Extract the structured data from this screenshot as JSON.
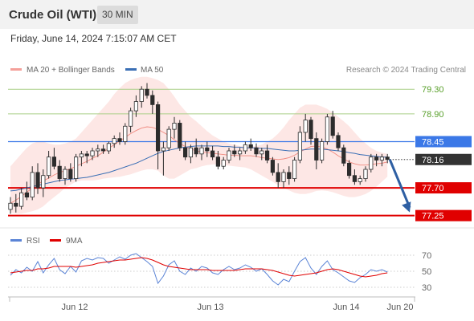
{
  "header": {
    "title": "Crude Oil (WTI)",
    "timeframe": "30 MIN"
  },
  "datetime": "Friday, June 14, 2024 7:15:07 AM CET",
  "copyright": "Research © 2024 Trading Central",
  "chart_data": {
    "type": "candlestick",
    "instrument": "Crude Oil (WTI)",
    "interval": "30 MIN",
    "legend": {
      "position": "top-left",
      "items": [
        {
          "name": "MA 20 + Bollinger Bands",
          "color": "#f4a09a"
        },
        {
          "name": "MA 50",
          "color": "#3a6fb5"
        }
      ]
    },
    "ylim": [
      77.05,
      79.55
    ],
    "price_ticks": [
      79.3,
      78.9,
      78.45,
      78.16,
      77.7,
      77.25
    ],
    "levels": [
      {
        "value": 79.3,
        "label": "79.30",
        "kind": "resistance-2",
        "color": "#a9cf87",
        "label_color": "#5aa02c"
      },
      {
        "value": 78.9,
        "label": "78.90",
        "kind": "resistance-1",
        "color": "#a9cf87",
        "label_color": "#5aa02c"
      },
      {
        "value": 78.45,
        "label": "78.45",
        "kind": "pivot",
        "color": "#3b78e7",
        "label_bg": "#3b78e7"
      },
      {
        "value": 78.16,
        "label": "78.16",
        "kind": "last-price",
        "color": "#333333",
        "label_bg": "#333333"
      },
      {
        "value": 77.7,
        "label": "77.70",
        "kind": "support-1",
        "color": "#e00000",
        "label_bg": "#e00000"
      },
      {
        "value": 77.25,
        "label": "77.25",
        "kind": "support-2",
        "color": "#e00000",
        "label_bg": "#e00000"
      }
    ],
    "x_labels": [
      "Jun 12",
      "Jun 13",
      "Jun 14",
      "Jun 20"
    ],
    "forecast": {
      "from": 78.16,
      "to": 77.25,
      "direction": "down",
      "color": "#2e5fa3"
    },
    "candles": [
      [
        77.35,
        77.55,
        77.28,
        77.45
      ],
      [
        77.45,
        77.6,
        77.3,
        77.4
      ],
      [
        77.4,
        77.7,
        77.35,
        77.62
      ],
      [
        77.62,
        77.8,
        77.5,
        77.55
      ],
      [
        77.55,
        78.05,
        77.5,
        77.95
      ],
      [
        77.95,
        78.1,
        77.6,
        77.7
      ],
      [
        77.7,
        78.0,
        77.55,
        77.9
      ],
      [
        77.9,
        78.3,
        77.85,
        78.2
      ],
      [
        78.2,
        78.35,
        78.0,
        78.05
      ],
      [
        78.05,
        78.15,
        77.8,
        77.85
      ],
      [
        77.85,
        78.05,
        77.75,
        78.0
      ],
      [
        78.0,
        78.1,
        77.8,
        77.85
      ],
      [
        77.85,
        78.25,
        77.8,
        78.2
      ],
      [
        78.2,
        78.3,
        78.05,
        78.25
      ],
      [
        78.25,
        78.3,
        78.1,
        78.22
      ],
      [
        78.22,
        78.35,
        78.15,
        78.3
      ],
      [
        78.3,
        78.4,
        78.2,
        78.33
      ],
      [
        78.33,
        78.4,
        78.25,
        78.3
      ],
      [
        78.3,
        78.45,
        78.25,
        78.42
      ],
      [
        78.42,
        78.55,
        78.35,
        78.5
      ],
      [
        78.5,
        78.6,
        78.4,
        78.45
      ],
      [
        78.45,
        78.75,
        78.4,
        78.7
      ],
      [
        78.7,
        79.0,
        78.6,
        78.95
      ],
      [
        78.95,
        79.2,
        78.85,
        79.1
      ],
      [
        79.1,
        79.35,
        79.0,
        79.3
      ],
      [
        79.3,
        79.4,
        79.15,
        79.2
      ],
      [
        79.2,
        79.28,
        78.9,
        79.05
      ],
      [
        79.05,
        79.1,
        78.0,
        78.3
      ],
      [
        78.3,
        78.45,
        77.9,
        78.35
      ],
      [
        78.35,
        78.7,
        78.3,
        78.65
      ],
      [
        78.65,
        78.85,
        78.5,
        78.75
      ],
      [
        78.75,
        78.8,
        78.3,
        78.35
      ],
      [
        78.35,
        78.45,
        78.15,
        78.2
      ],
      [
        78.2,
        78.4,
        78.1,
        78.35
      ],
      [
        78.35,
        78.5,
        78.2,
        78.25
      ],
      [
        78.25,
        78.4,
        78.15,
        78.35
      ],
      [
        78.35,
        78.45,
        78.2,
        78.3
      ],
      [
        78.3,
        78.38,
        78.15,
        78.2
      ],
      [
        78.2,
        78.3,
        78.0,
        78.05
      ],
      [
        78.05,
        78.2,
        78.0,
        78.15
      ],
      [
        78.15,
        78.35,
        78.1,
        78.3
      ],
      [
        78.3,
        78.4,
        78.2,
        78.25
      ],
      [
        78.25,
        78.35,
        78.15,
        78.3
      ],
      [
        78.3,
        78.45,
        78.25,
        78.4
      ],
      [
        78.4,
        78.5,
        78.3,
        78.35
      ],
      [
        78.35,
        78.42,
        78.2,
        78.25
      ],
      [
        78.25,
        78.35,
        78.15,
        78.3
      ],
      [
        78.3,
        78.4,
        78.1,
        78.15
      ],
      [
        78.15,
        78.2,
        77.9,
        77.95
      ],
      [
        77.95,
        78.1,
        77.7,
        77.8
      ],
      [
        77.8,
        78.0,
        77.7,
        77.95
      ],
      [
        77.95,
        78.05,
        77.75,
        77.85
      ],
      [
        77.85,
        78.2,
        77.8,
        78.15
      ],
      [
        78.15,
        78.7,
        78.1,
        78.6
      ],
      [
        78.6,
        78.9,
        78.45,
        78.8
      ],
      [
        78.8,
        78.85,
        78.4,
        78.5
      ],
      [
        78.5,
        78.6,
        78.0,
        78.15
      ],
      [
        78.15,
        78.5,
        78.1,
        78.45
      ],
      [
        78.45,
        78.9,
        78.4,
        78.85
      ],
      [
        78.85,
        78.95,
        78.5,
        78.55
      ],
      [
        78.55,
        78.6,
        78.3,
        78.35
      ],
      [
        78.35,
        78.4,
        78.05,
        78.1
      ],
      [
        78.1,
        78.15,
        77.85,
        77.9
      ],
      [
        77.9,
        78.0,
        77.75,
        77.8
      ],
      [
        77.8,
        77.9,
        77.75,
        77.85
      ],
      [
        77.85,
        78.05,
        77.8,
        78.0
      ],
      [
        78.0,
        78.25,
        77.95,
        78.2
      ],
      [
        78.2,
        78.25,
        78.05,
        78.15
      ],
      [
        78.15,
        78.25,
        78.05,
        78.2
      ],
      [
        78.2,
        78.25,
        78.1,
        78.16
      ]
    ],
    "bb_mid": [
      77.45,
      77.5,
      77.56,
      77.63,
      77.7,
      77.76,
      77.81,
      77.86,
      77.91,
      77.95,
      77.98,
      78.01,
      78.05,
      78.09,
      78.13,
      78.18,
      78.22,
      78.28,
      78.34,
      78.4,
      78.46,
      78.52,
      78.58,
      78.63,
      78.67,
      78.69,
      78.68,
      78.65,
      78.6,
      78.55,
      78.48,
      78.42,
      78.37,
      78.33,
      78.3,
      78.28,
      78.27,
      78.26,
      78.25,
      78.24,
      78.23,
      78.23,
      78.22,
      78.22,
      78.22,
      78.21,
      78.19,
      78.18,
      78.17,
      78.16,
      78.17,
      78.19,
      78.23,
      78.28,
      78.33,
      78.37,
      78.38,
      78.36,
      78.33,
      78.28,
      78.22,
      78.17,
      78.12,
      78.09,
      78.07,
      78.07,
      78.08,
      78.09,
      78.1,
      78.12
    ],
    "bb_upper": [
      78.05,
      78.15,
      78.25,
      78.35,
      78.42,
      78.45,
      78.45,
      78.42,
      78.4,
      78.4,
      78.42,
      78.45,
      78.5,
      78.6,
      78.7,
      78.8,
      78.9,
      79.0,
      79.1,
      79.22,
      79.32,
      79.4,
      79.45,
      79.48,
      79.5,
      79.5,
      79.48,
      79.45,
      79.4,
      79.3,
      79.18,
      79.05,
      78.95,
      78.85,
      78.78,
      78.7,
      78.62,
      78.55,
      78.5,
      78.45,
      78.42,
      78.4,
      78.38,
      78.37,
      78.37,
      78.38,
      78.4,
      78.45,
      78.5,
      78.58,
      78.68,
      78.8,
      78.9,
      79.0,
      79.05,
      79.05,
      79.05,
      79.02,
      78.98,
      78.92,
      78.85,
      78.78,
      78.7,
      78.6,
      78.5,
      78.42,
      78.35,
      78.3,
      78.27,
      78.25
    ],
    "bb_lower": [
      77.3,
      77.28,
      77.28,
      77.3,
      77.32,
      77.35,
      77.4,
      77.48,
      77.55,
      77.62,
      77.7,
      77.75,
      77.8,
      77.82,
      77.82,
      77.82,
      77.83,
      77.85,
      77.86,
      77.87,
      77.88,
      77.9,
      77.92,
      77.95,
      77.98,
      78.0,
      78.0,
      77.98,
      77.9,
      77.85,
      77.85,
      77.9,
      77.95,
      78.0,
      78.02,
      78.05,
      78.07,
      78.08,
      78.08,
      78.07,
      78.06,
      78.05,
      78.04,
      78.03,
      78.0,
      77.95,
      77.9,
      77.85,
      77.8,
      77.74,
      77.7,
      77.66,
      77.62,
      77.6,
      77.6,
      77.62,
      77.65,
      77.66,
      77.65,
      77.63,
      77.6,
      77.57,
      77.55,
      77.55,
      77.57,
      77.6,
      77.65,
      77.72,
      77.8,
      77.88
    ],
    "ma50": [
      77.65,
      77.66,
      77.68,
      77.7,
      77.72,
      77.74,
      77.76,
      77.78,
      77.8,
      77.82,
      77.83,
      77.84,
      77.85,
      77.86,
      77.87,
      77.89,
      77.91,
      77.93,
      77.95,
      77.98,
      78.01,
      78.04,
      78.07,
      78.1,
      78.14,
      78.18,
      78.22,
      78.26,
      78.29,
      78.31,
      78.33,
      78.35,
      78.36,
      78.37,
      78.38,
      78.38,
      78.38,
      78.38,
      78.38,
      78.37,
      78.37,
      78.36,
      78.36,
      78.35,
      78.35,
      78.35,
      78.34,
      78.34,
      78.33,
      78.32,
      78.31,
      78.3,
      78.3,
      78.31,
      78.32,
      78.33,
      78.33,
      78.33,
      78.32,
      78.31,
      78.3,
      78.29,
      78.27,
      78.26,
      78.24,
      78.23,
      78.22,
      78.21,
      78.2,
      78.2
    ],
    "rsi": {
      "title": "RSI",
      "signal_title": "9MA",
      "ylim": [
        20,
        80
      ],
      "ticks": [
        70,
        50,
        30
      ],
      "rsi": [
        45,
        52,
        48,
        55,
        50,
        62,
        48,
        58,
        66,
        52,
        47,
        56,
        49,
        63,
        66,
        64,
        67,
        66,
        60,
        64,
        68,
        65,
        70,
        72,
        67,
        62,
        56,
        35,
        44,
        58,
        63,
        50,
        46,
        54,
        50,
        56,
        54,
        48,
        46,
        52,
        56,
        52,
        54,
        58,
        55,
        50,
        53,
        46,
        38,
        33,
        40,
        37,
        50,
        62,
        67,
        54,
        46,
        56,
        63,
        52,
        48,
        43,
        38,
        36,
        42,
        46,
        52,
        50,
        52,
        49
      ],
      "ma9": [
        48,
        49,
        50,
        51,
        51,
        53,
        53,
        54,
        56,
        56,
        56,
        56,
        55,
        56,
        57,
        58,
        60,
        61,
        62,
        63,
        64,
        64,
        65,
        66,
        67,
        66,
        64,
        61,
        58,
        56,
        55,
        54,
        53,
        52,
        52,
        52,
        52,
        51,
        51,
        51,
        51,
        51,
        52,
        53,
        53,
        53,
        53,
        52,
        51,
        49,
        47,
        45,
        44,
        45,
        46,
        47,
        48,
        50,
        52,
        53,
        52,
        50,
        48,
        46,
        44,
        43,
        44,
        45,
        47,
        48
      ]
    }
  }
}
